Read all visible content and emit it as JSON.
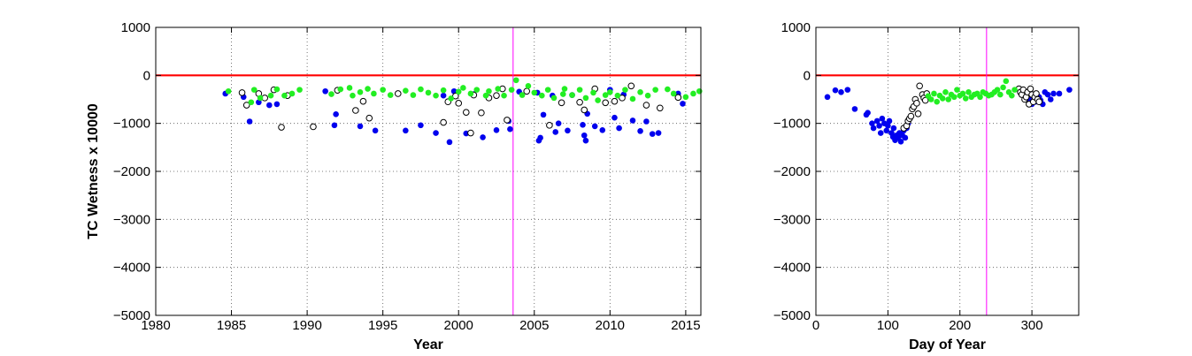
{
  "chart_data": [
    {
      "type": "scatter",
      "xlabel": "Year",
      "ylabel": "TC Wetness x 10000",
      "xlim": [
        1980,
        2016
      ],
      "ylim": [
        -5000,
        1000
      ],
      "x_ticks": [
        1980,
        1985,
        1990,
        1995,
        2000,
        2005,
        2010,
        2015
      ],
      "y_ticks": [
        -5000,
        -4000,
        -3000,
        -2000,
        -1000,
        0,
        1000
      ],
      "grid": true,
      "zero_line": {
        "y": 0,
        "color": "#ff0000"
      },
      "marker_line": {
        "x": 2003.6,
        "color": "#ff00ff"
      },
      "series": [
        {
          "marker": "filled",
          "color": "#0000ee",
          "points": [
            [
              1984.6,
              -380
            ],
            [
              1985.8,
              -450
            ],
            [
              1986.2,
              -960
            ],
            [
              1986.8,
              -560
            ],
            [
              1987.5,
              -620
            ],
            [
              1988.0,
              -600
            ],
            [
              1991.2,
              -330
            ],
            [
              1991.8,
              -1040
            ],
            [
              1991.9,
              -810
            ],
            [
              1993.5,
              -1060
            ],
            [
              1994.5,
              -1150
            ],
            [
              1996.5,
              -1150
            ],
            [
              1997.5,
              -1040
            ],
            [
              1998.5,
              -1200
            ],
            [
              1999.0,
              -420
            ],
            [
              1999.4,
              -1390
            ],
            [
              1999.7,
              -330
            ],
            [
              2000.5,
              -1210
            ],
            [
              2001.0,
              -390
            ],
            [
              2001.6,
              -1290
            ],
            [
              2002.5,
              -1140
            ],
            [
              2003.3,
              -950
            ],
            [
              2003.4,
              -1120
            ],
            [
              2004.0,
              -340
            ],
            [
              2005.2,
              -360
            ],
            [
              2005.3,
              -1360
            ],
            [
              2005.4,
              -1300
            ],
            [
              2005.6,
              -820
            ],
            [
              2006.2,
              -420
            ],
            [
              2006.4,
              -1180
            ],
            [
              2006.6,
              -1000
            ],
            [
              2007.2,
              -1150
            ],
            [
              2007.5,
              -410
            ],
            [
              2008.2,
              -1030
            ],
            [
              2008.3,
              -1250
            ],
            [
              2008.4,
              -1360
            ],
            [
              2008.5,
              -800
            ],
            [
              2009.0,
              -1060
            ],
            [
              2009.5,
              -1140
            ],
            [
              2010.0,
              -300
            ],
            [
              2010.3,
              -880
            ],
            [
              2010.6,
              -1100
            ],
            [
              2010.9,
              -400
            ],
            [
              2011.5,
              -940
            ],
            [
              2012.0,
              -1160
            ],
            [
              2012.4,
              -960
            ],
            [
              2012.8,
              -1220
            ],
            [
              2013.2,
              -1200
            ],
            [
              2014.5,
              -380
            ],
            [
              2014.8,
              -590
            ]
          ]
        },
        {
          "marker": "open",
          "color": "#000000",
          "points": [
            [
              1985.7,
              -360
            ],
            [
              1986.0,
              -620
            ],
            [
              1986.8,
              -380
            ],
            [
              1987.2,
              -470
            ],
            [
              1987.8,
              -300
            ],
            [
              1988.3,
              -1080
            ],
            [
              1988.7,
              -420
            ],
            [
              1990.4,
              -1070
            ],
            [
              1992.0,
              -310
            ],
            [
              1993.2,
              -730
            ],
            [
              1993.7,
              -540
            ],
            [
              1994.1,
              -890
            ],
            [
              1996.0,
              -380
            ],
            [
              1999.0,
              -980
            ],
            [
              1999.3,
              -550
            ],
            [
              1999.8,
              -430
            ],
            [
              2000.0,
              -580
            ],
            [
              2000.5,
              -770
            ],
            [
              2000.8,
              -1200
            ],
            [
              2001.0,
              -410
            ],
            [
              2001.5,
              -780
            ],
            [
              2002.0,
              -470
            ],
            [
              2002.5,
              -420
            ],
            [
              2002.9,
              -280
            ],
            [
              2003.2,
              -930
            ],
            [
              2004.5,
              -330
            ],
            [
              2006.0,
              -1040
            ],
            [
              2006.8,
              -570
            ],
            [
              2008.0,
              -560
            ],
            [
              2008.3,
              -720
            ],
            [
              2009.0,
              -280
            ],
            [
              2009.7,
              -570
            ],
            [
              2010.3,
              -540
            ],
            [
              2010.8,
              -470
            ],
            [
              2011.4,
              -220
            ],
            [
              2012.4,
              -620
            ],
            [
              2013.3,
              -680
            ],
            [
              2014.5,
              -460
            ]
          ]
        },
        {
          "marker": "filled",
          "color": "#22ee22",
          "points": [
            [
              1984.8,
              -330
            ],
            [
              1986.3,
              -560
            ],
            [
              1986.5,
              -300
            ],
            [
              1986.9,
              -470
            ],
            [
              1987.6,
              -420
            ],
            [
              1988.0,
              -290
            ],
            [
              1988.5,
              -420
            ],
            [
              1989.0,
              -380
            ],
            [
              1989.5,
              -300
            ],
            [
              1991.6,
              -390
            ],
            [
              1992.2,
              -290
            ],
            [
              1992.8,
              -260
            ],
            [
              1993.0,
              -420
            ],
            [
              1993.5,
              -350
            ],
            [
              1994.0,
              -280
            ],
            [
              1994.4,
              -380
            ],
            [
              1995.0,
              -300
            ],
            [
              1995.5,
              -410
            ],
            [
              1996.5,
              -320
            ],
            [
              1997.0,
              -410
            ],
            [
              1997.5,
              -290
            ],
            [
              1998.0,
              -360
            ],
            [
              1998.5,
              -420
            ],
            [
              1999.0,
              -310
            ],
            [
              1999.5,
              -480
            ],
            [
              2000.0,
              -340
            ],
            [
              2000.3,
              -260
            ],
            [
              2000.8,
              -380
            ],
            [
              2001.2,
              -300
            ],
            [
              2001.8,
              -420
            ],
            [
              2002.0,
              -330
            ],
            [
              2002.6,
              -280
            ],
            [
              2003.0,
              -420
            ],
            [
              2003.5,
              -300
            ],
            [
              2003.8,
              -100
            ],
            [
              2004.2,
              -410
            ],
            [
              2004.6,
              -220
            ],
            [
              2005.0,
              -360
            ],
            [
              2005.5,
              -420
            ],
            [
              2005.9,
              -300
            ],
            [
              2006.3,
              -470
            ],
            [
              2006.9,
              -390
            ],
            [
              2007.0,
              -280
            ],
            [
              2007.5,
              -410
            ],
            [
              2008.0,
              -300
            ],
            [
              2008.4,
              -470
            ],
            [
              2008.9,
              -360
            ],
            [
              2009.2,
              -520
            ],
            [
              2009.7,
              -410
            ],
            [
              2010.0,
              -350
            ],
            [
              2010.5,
              -420
            ],
            [
              2011.0,
              -300
            ],
            [
              2011.5,
              -490
            ],
            [
              2012.0,
              -350
            ],
            [
              2012.5,
              -420
            ],
            [
              2013.0,
              -300
            ],
            [
              2013.8,
              -290
            ],
            [
              2014.2,
              -380
            ],
            [
              2015.0,
              -450
            ],
            [
              2015.5,
              -380
            ],
            [
              2015.9,
              -330
            ]
          ]
        }
      ]
    },
    {
      "type": "scatter",
      "xlabel": "Day of Year",
      "ylabel": "",
      "xlim": [
        0,
        365
      ],
      "ylim": [
        -5000,
        1000
      ],
      "x_ticks": [
        0,
        100,
        200,
        300
      ],
      "y_ticks": [
        -5000,
        -4000,
        -3000,
        -2000,
        -1000,
        0,
        1000
      ],
      "grid": true,
      "zero_line": {
        "y": 0,
        "color": "#ff0000"
      },
      "marker_line": {
        "x": 237,
        "color": "#ff00ff"
      },
      "series": [
        {
          "marker": "filled",
          "color": "#0000ee",
          "points": [
            [
              16,
              -450
            ],
            [
              27,
              -310
            ],
            [
              35,
              -350
            ],
            [
              44,
              -300
            ],
            [
              54,
              -700
            ],
            [
              70,
              -820
            ],
            [
              72,
              -780
            ],
            [
              78,
              -1000
            ],
            [
              80,
              -1100
            ],
            [
              85,
              -950
            ],
            [
              88,
              -1050
            ],
            [
              90,
              -1200
            ],
            [
              92,
              -900
            ],
            [
              95,
              -1000
            ],
            [
              98,
              -1150
            ],
            [
              100,
              -1050
            ],
            [
              102,
              -950
            ],
            [
              105,
              -1200
            ],
            [
              107,
              -1280
            ],
            [
              108,
              -1100
            ],
            [
              110,
              -1350
            ],
            [
              112,
              -1250
            ],
            [
              114,
              -1300
            ],
            [
              116,
              -1200
            ],
            [
              118,
              -1380
            ],
            [
              120,
              -1250
            ],
            [
              122,
              -1150
            ],
            [
              124,
              -1300
            ],
            [
              126,
              -1100
            ],
            [
              128,
              -1000
            ],
            [
              288,
              -380
            ],
            [
              292,
              -420
            ],
            [
              296,
              -500
            ],
            [
              300,
              -600
            ],
            [
              305,
              -550
            ],
            [
              310,
              -450
            ],
            [
              312,
              -520
            ],
            [
              315,
              -600
            ],
            [
              318,
              -350
            ],
            [
              322,
              -400
            ],
            [
              326,
              -500
            ],
            [
              330,
              -380
            ],
            [
              338,
              -380
            ],
            [
              352,
              -300
            ]
          ]
        },
        {
          "marker": "open",
          "color": "#000000",
          "points": [
            [
              122,
              -1100
            ],
            [
              126,
              -1050
            ],
            [
              128,
              -950
            ],
            [
              130,
              -900
            ],
            [
              132,
              -850
            ],
            [
              134,
              -700
            ],
            [
              136,
              -650
            ],
            [
              138,
              -500
            ],
            [
              140,
              -580
            ],
            [
              142,
              -800
            ],
            [
              144,
              -220
            ],
            [
              148,
              -400
            ],
            [
              150,
              -470
            ],
            [
              152,
              -520
            ],
            [
              154,
              -380
            ],
            [
              282,
              -280
            ],
            [
              284,
              -350
            ],
            [
              286,
              -400
            ],
            [
              288,
              -300
            ],
            [
              290,
              -500
            ],
            [
              292,
              -450
            ],
            [
              294,
              -350
            ],
            [
              296,
              -600
            ],
            [
              298,
              -280
            ],
            [
              300,
              -400
            ],
            [
              302,
              -550
            ],
            [
              304,
              -450
            ],
            [
              306,
              -380
            ],
            [
              308,
              -500
            ],
            [
              310,
              -550
            ]
          ]
        },
        {
          "marker": "filled",
          "color": "#22ee22",
          "points": [
            [
              156,
              -430
            ],
            [
              160,
              -500
            ],
            [
              164,
              -380
            ],
            [
              168,
              -550
            ],
            [
              172,
              -420
            ],
            [
              176,
              -480
            ],
            [
              180,
              -350
            ],
            [
              184,
              -500
            ],
            [
              188,
              -400
            ],
            [
              192,
              -450
            ],
            [
              196,
              -300
            ],
            [
              200,
              -420
            ],
            [
              204,
              -380
            ],
            [
              208,
              -480
            ],
            [
              212,
              -350
            ],
            [
              216,
              -450
            ],
            [
              220,
              -400
            ],
            [
              224,
              -380
            ],
            [
              228,
              -450
            ],
            [
              232,
              -350
            ],
            [
              236,
              -380
            ],
            [
              240,
              -420
            ],
            [
              244,
              -400
            ],
            [
              248,
              -350
            ],
            [
              252,
              -300
            ],
            [
              256,
              -400
            ],
            [
              260,
              -250
            ],
            [
              264,
              -120
            ],
            [
              268,
              -350
            ],
            [
              272,
              -420
            ],
            [
              276,
              -300
            ]
          ]
        }
      ]
    }
  ]
}
